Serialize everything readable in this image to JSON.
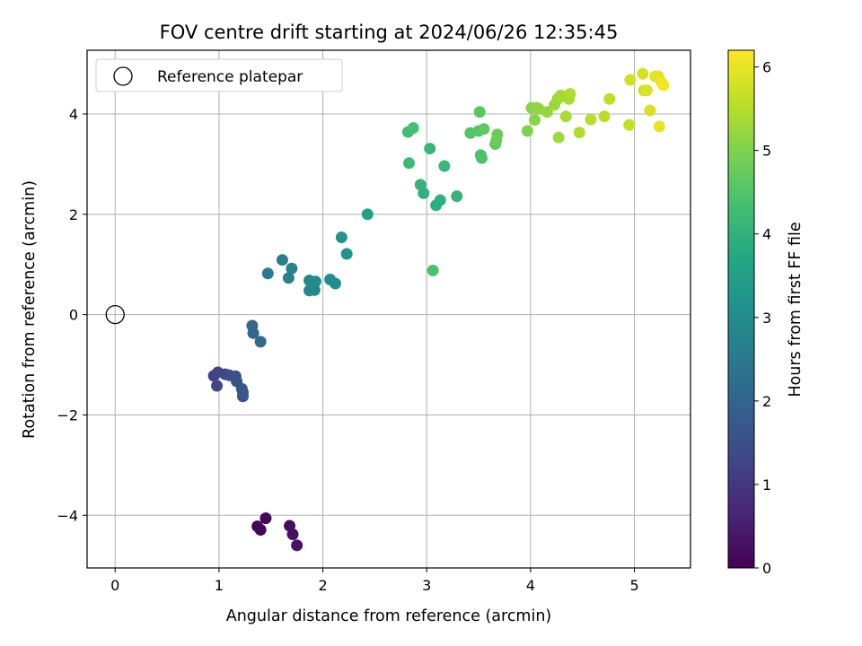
{
  "chart_data": {
    "type": "scatter",
    "title": "FOV centre drift starting at 2024/06/26 12:35:45",
    "xlabel": "Angular distance from reference (arcmin)",
    "ylabel": "Rotation from reference (arcmin)",
    "xlim": [
      -0.27,
      5.54
    ],
    "ylim": [
      -5.05,
      5.27
    ],
    "xticks": [
      0,
      1,
      2,
      3,
      4,
      5
    ],
    "yticks": [
      -4,
      -2,
      0,
      2,
      4
    ],
    "xtick_labels": [
      "0",
      "1",
      "2",
      "3",
      "4",
      "5"
    ],
    "ytick_labels": [
      "−4",
      "−2",
      "0",
      "2",
      "4"
    ],
    "grid": true,
    "legend": {
      "label": "Reference platepar",
      "placement": "top-left"
    },
    "reference_point": {
      "x": 0,
      "y": 0,
      "marker": "open-circle"
    },
    "colorbar": {
      "label": "Hours from first FF file",
      "colormap": "viridis",
      "range": [
        0,
        6.2
      ],
      "ticks": [
        0,
        1,
        2,
        3,
        4,
        5,
        6
      ],
      "tick_labels": [
        "0",
        "1",
        "2",
        "3",
        "4",
        "5",
        "6"
      ]
    },
    "points": [
      {
        "x": 1.37,
        "y": -4.22,
        "t": 0.05
      },
      {
        "x": 1.4,
        "y": -4.29,
        "t": 0.1
      },
      {
        "x": 1.45,
        "y": -4.06,
        "t": 0.15
      },
      {
        "x": 1.68,
        "y": -4.21,
        "t": 0.2
      },
      {
        "x": 1.71,
        "y": -4.38,
        "t": 0.25
      },
      {
        "x": 1.75,
        "y": -4.6,
        "t": 0.3
      },
      {
        "x": 0.95,
        "y": -1.22,
        "t": 1.2
      },
      {
        "x": 0.99,
        "y": -1.15,
        "t": 1.25
      },
      {
        "x": 0.98,
        "y": -1.42,
        "t": 1.3
      },
      {
        "x": 1.06,
        "y": -1.19,
        "t": 1.35
      },
      {
        "x": 1.1,
        "y": -1.21,
        "t": 1.4
      },
      {
        "x": 1.16,
        "y": -1.23,
        "t": 1.5
      },
      {
        "x": 1.17,
        "y": -1.33,
        "t": 1.55
      },
      {
        "x": 1.22,
        "y": -1.48,
        "t": 1.6
      },
      {
        "x": 1.23,
        "y": -1.55,
        "t": 1.65
      },
      {
        "x": 1.23,
        "y": -1.63,
        "t": 1.7
      },
      {
        "x": 1.32,
        "y": -0.22,
        "t": 2.0
      },
      {
        "x": 1.33,
        "y": -0.37,
        "t": 2.05
      },
      {
        "x": 1.4,
        "y": -0.54,
        "t": 2.1
      },
      {
        "x": 1.47,
        "y": 0.82,
        "t": 2.55
      },
      {
        "x": 1.61,
        "y": 1.09,
        "t": 2.6
      },
      {
        "x": 1.67,
        "y": 0.73,
        "t": 2.65
      },
      {
        "x": 1.7,
        "y": 0.92,
        "t": 2.7
      },
      {
        "x": 1.87,
        "y": 0.68,
        "t": 2.85
      },
      {
        "x": 1.87,
        "y": 0.48,
        "t": 2.9
      },
      {
        "x": 1.92,
        "y": 0.49,
        "t": 2.9
      },
      {
        "x": 1.93,
        "y": 0.66,
        "t": 2.95
      },
      {
        "x": 2.07,
        "y": 0.7,
        "t": 3.0
      },
      {
        "x": 2.12,
        "y": 0.62,
        "t": 3.05
      },
      {
        "x": 2.18,
        "y": 1.54,
        "t": 3.15
      },
      {
        "x": 2.23,
        "y": 1.21,
        "t": 3.2
      },
      {
        "x": 2.43,
        "y": 2.0,
        "t": 3.5
      },
      {
        "x": 2.82,
        "y": 3.64,
        "t": 4.3
      },
      {
        "x": 2.87,
        "y": 3.72,
        "t": 4.35
      },
      {
        "x": 2.83,
        "y": 3.02,
        "t": 4.2
      },
      {
        "x": 2.94,
        "y": 2.59,
        "t": 4.05
      },
      {
        "x": 2.97,
        "y": 2.42,
        "t": 4.0
      },
      {
        "x": 3.03,
        "y": 3.31,
        "t": 4.1
      },
      {
        "x": 3.09,
        "y": 2.18,
        "t": 3.9
      },
      {
        "x": 3.13,
        "y": 2.28,
        "t": 3.95
      },
      {
        "x": 3.17,
        "y": 2.96,
        "t": 4.15
      },
      {
        "x": 3.06,
        "y": 0.88,
        "t": 4.4
      },
      {
        "x": 3.29,
        "y": 2.36,
        "t": 4.05
      },
      {
        "x": 3.42,
        "y": 3.62,
        "t": 4.5
      },
      {
        "x": 3.5,
        "y": 3.66,
        "t": 4.55
      },
      {
        "x": 3.51,
        "y": 4.04,
        "t": 4.6
      },
      {
        "x": 3.52,
        "y": 3.18,
        "t": 4.4
      },
      {
        "x": 3.53,
        "y": 3.12,
        "t": 4.45
      },
      {
        "x": 3.55,
        "y": 3.7,
        "t": 4.65
      },
      {
        "x": 3.66,
        "y": 3.4,
        "t": 4.7
      },
      {
        "x": 3.67,
        "y": 3.47,
        "t": 4.75
      },
      {
        "x": 3.68,
        "y": 3.59,
        "t": 4.8
      },
      {
        "x": 3.97,
        "y": 3.66,
        "t": 5.0
      },
      {
        "x": 4.01,
        "y": 4.12,
        "t": 5.05
      },
      {
        "x": 4.04,
        "y": 3.88,
        "t": 5.1
      },
      {
        "x": 4.06,
        "y": 4.12,
        "t": 5.15
      },
      {
        "x": 4.08,
        "y": 4.1,
        "t": 5.15
      },
      {
        "x": 4.16,
        "y": 4.04,
        "t": 5.2
      },
      {
        "x": 4.23,
        "y": 4.18,
        "t": 5.25
      },
      {
        "x": 4.26,
        "y": 4.3,
        "t": 5.3
      },
      {
        "x": 4.27,
        "y": 3.53,
        "t": 5.3
      },
      {
        "x": 4.29,
        "y": 4.37,
        "t": 5.35
      },
      {
        "x": 4.32,
        "y": 4.35,
        "t": 5.35
      },
      {
        "x": 4.34,
        "y": 3.95,
        "t": 5.4
      },
      {
        "x": 4.37,
        "y": 4.3,
        "t": 5.4
      },
      {
        "x": 4.38,
        "y": 4.4,
        "t": 5.45
      },
      {
        "x": 4.47,
        "y": 3.63,
        "t": 5.45
      },
      {
        "x": 4.58,
        "y": 3.89,
        "t": 5.5
      },
      {
        "x": 4.71,
        "y": 3.95,
        "t": 5.55
      },
      {
        "x": 4.76,
        "y": 4.3,
        "t": 5.6
      },
      {
        "x": 4.95,
        "y": 3.78,
        "t": 5.65
      },
      {
        "x": 4.96,
        "y": 4.68,
        "t": 5.75
      },
      {
        "x": 5.08,
        "y": 4.8,
        "t": 5.8
      },
      {
        "x": 5.09,
        "y": 4.47,
        "t": 5.8
      },
      {
        "x": 5.12,
        "y": 4.47,
        "t": 5.85
      },
      {
        "x": 5.15,
        "y": 4.07,
        "t": 5.85
      },
      {
        "x": 5.2,
        "y": 4.75,
        "t": 5.9
      },
      {
        "x": 5.23,
        "y": 4.75,
        "t": 5.95
      },
      {
        "x": 5.24,
        "y": 3.75,
        "t": 6.0
      },
      {
        "x": 5.26,
        "y": 4.63,
        "t": 6.05
      },
      {
        "x": 5.28,
        "y": 4.57,
        "t": 6.1
      }
    ]
  }
}
